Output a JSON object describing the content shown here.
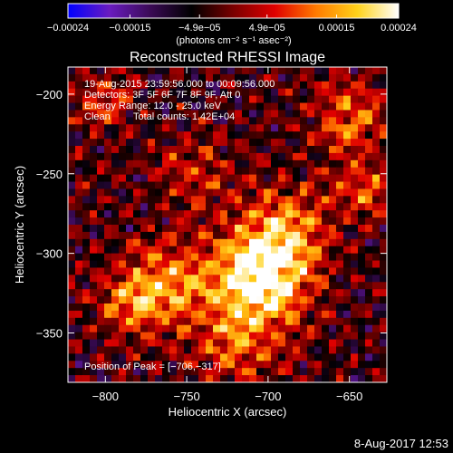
{
  "chart_data": {
    "type": "heatmap",
    "title": "Reconstructed RHESSI Image",
    "xlabel": "Heliocentric X (arcsec)",
    "ylabel": "Heliocentric Y (arcsec)",
    "xlim": [
      -823,
      -627
    ],
    "ylim": [
      -381,
      -183
    ],
    "x_ticks": [
      {
        "value": -800,
        "label": "−800"
      },
      {
        "value": -750,
        "label": "−750"
      },
      {
        "value": -700,
        "label": "−700"
      },
      {
        "value": -650,
        "label": "−650"
      }
    ],
    "y_ticks": [
      {
        "value": -200,
        "label": "−200"
      },
      {
        "value": -250,
        "label": "−250"
      },
      {
        "value": -300,
        "label": "−300"
      },
      {
        "value": -350,
        "label": "−350"
      }
    ],
    "colorbar": {
      "range": [
        -0.00024,
        0.00024
      ],
      "ticks": [
        {
          "value": -0.00024,
          "label": "−0.00024"
        },
        {
          "value": -0.00015,
          "label": "−0.00015"
        },
        {
          "value": -4.9e-05,
          "label": "−4.9e−05"
        },
        {
          "value": 4.9e-05,
          "label": "4.9e−05"
        },
        {
          "value": 0.00015,
          "label": "0.00015"
        },
        {
          "value": 0.00024,
          "label": "0.00024"
        }
      ],
      "unit_label": "(photons cm⁻² s⁻¹ asec⁻²)",
      "colors": [
        "#0000ff",
        "#6a1cc0",
        "#3a0a55",
        "#000000",
        "#7a0000",
        "#e00000",
        "#ff7a00",
        "#ffd21a",
        "#ffffff"
      ]
    },
    "annotations": {
      "time_range": "19-Aug-2015 23:59:56.000 to 00:09:56.000",
      "detectors": "Detectors: 3F 5F 6F 7F 8F 9F, Att 0",
      "energy_range": "Energy Range: 12.0 - 25.0 keV",
      "method": "Clean",
      "total_counts": "Total counts: 1.42E+04",
      "peak": "Position of Peak = [−706,−317]"
    },
    "peak": {
      "x": -706,
      "y": -317
    },
    "grid": false
  },
  "footer": {
    "timestamp": "8-Aug-2017 12:53"
  }
}
